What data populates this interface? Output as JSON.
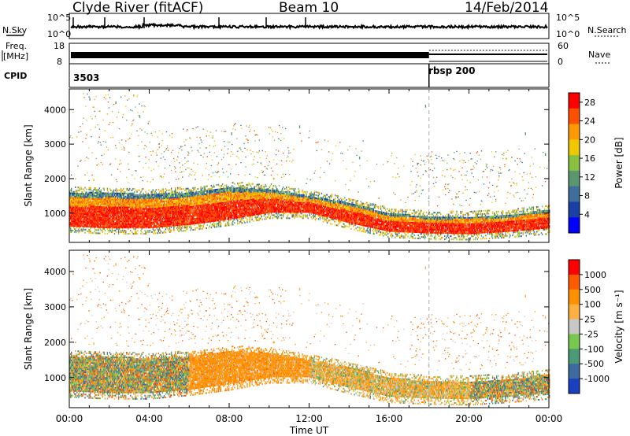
{
  "header": {
    "station": "Clyde River (fitACF)",
    "beam": "Beam 10",
    "date": "14/Feb/2014"
  },
  "top_panels": {
    "nsky_label": "N.Sky",
    "nsearch_label": "N.Search",
    "nsky_ticks": [
      "10^5",
      "10^0"
    ],
    "freq_label": "Freq.",
    "freq_unit": "[MHz]",
    "freq_ticks": [
      "18",
      "8"
    ],
    "nave_label": "Nave",
    "nave_ticks": [
      "60",
      "0"
    ],
    "cpid_label": "CPID",
    "cpid_values": [
      "3503",
      "rbsp 200"
    ]
  },
  "colors": {
    "power_scale": [
      "#0000ff",
      "#1a3fa6",
      "#3f6e9c",
      "#5a9670",
      "#88c040",
      "#f0c800",
      "#ff9a00",
      "#ff5000",
      "#ff0000"
    ],
    "velocity_scale": [
      "#ff0000",
      "#ff5a00",
      "#ff9000",
      "#ffb040",
      "#c8c8c8",
      "#78c850",
      "#4a9a78",
      "#3f6aa0",
      "#1a3fc0"
    ]
  },
  "chart_data": [
    {
      "type": "heatmap",
      "name": "power-panel",
      "ylabel": "Slant Range [km]",
      "xlim_hours": [
        0,
        24
      ],
      "ylim": [
        150,
        4600
      ],
      "yticks": [
        "1000",
        "2000",
        "3000",
        "4000"
      ],
      "colorbar_label": "Power [dB]",
      "colorbar_ticks": [
        "4",
        "8",
        "12",
        "16",
        "20",
        "24",
        "28"
      ],
      "colorbar_range": [
        0,
        30
      ],
      "main_band_range_km": {
        "hours": [
          0,
          2,
          4,
          6,
          8,
          10,
          12,
          14,
          16,
          18,
          20,
          22,
          24
        ],
        "lower": [
          600,
          550,
          550,
          650,
          800,
          1000,
          1000,
          700,
          450,
          400,
          380,
          450,
          550
        ],
        "upper": [
          1600,
          1600,
          1550,
          1600,
          1750,
          1700,
          1500,
          1300,
          1000,
          900,
          900,
          950,
          1100
        ]
      },
      "marker_time_hour": 18
    },
    {
      "type": "heatmap",
      "name": "velocity-panel",
      "ylabel": "Slant Range [km]",
      "xlabel": "Time UT",
      "xlim_hours": [
        0,
        24
      ],
      "ylim": [
        150,
        4600
      ],
      "yticks": [
        "1000",
        "2000",
        "3000",
        "4000"
      ],
      "xticks": [
        "00:00",
        "04:00",
        "08:00",
        "12:00",
        "16:00",
        "20:00",
        "00:00"
      ],
      "colorbar_label": "Velocity [m s⁻¹]",
      "colorbar_ticks": [
        "1000",
        "500",
        "100",
        "25",
        "-25",
        "-100",
        "-500",
        "-1000"
      ],
      "marker_time_hour": 18
    }
  ]
}
